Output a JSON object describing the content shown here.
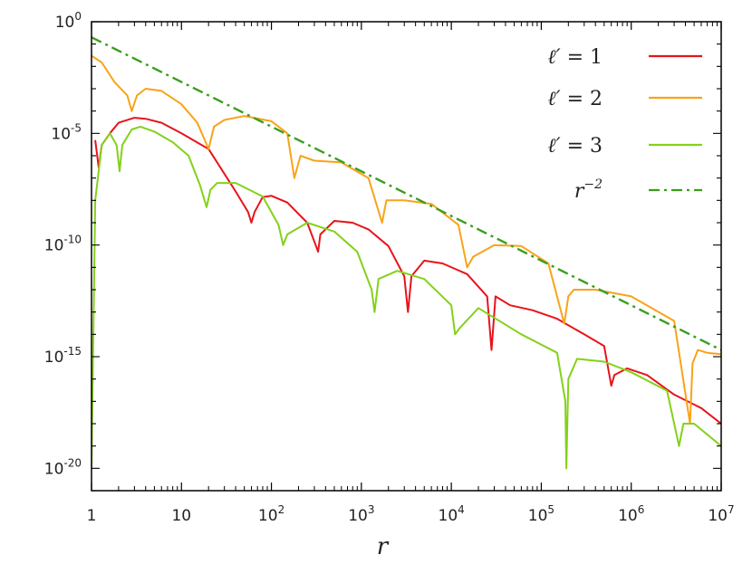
{
  "chart_data": {
    "type": "line",
    "title": "",
    "xlabel": "r",
    "ylabel": "",
    "x_scale": "log",
    "y_scale": "log",
    "xlim": [
      1,
      10000000
    ],
    "ylim": [
      1e-21,
      1
    ],
    "grid": false,
    "legend_position": "top-right",
    "x_ticks": [
      {
        "value": 1,
        "base": "1",
        "exp": ""
      },
      {
        "value": 10,
        "base": "10",
        "exp": ""
      },
      {
        "value": 100,
        "base": "10",
        "exp": "2"
      },
      {
        "value": 1000,
        "base": "10",
        "exp": "3"
      },
      {
        "value": 10000,
        "base": "10",
        "exp": "4"
      },
      {
        "value": 100000,
        "base": "10",
        "exp": "5"
      },
      {
        "value": 1000000,
        "base": "10",
        "exp": "6"
      },
      {
        "value": 10000000,
        "base": "10",
        "exp": "7"
      }
    ],
    "y_ticks": [
      {
        "value": 1,
        "base": "10",
        "exp": "0"
      },
      {
        "value": 1e-05,
        "base": "10",
        "exp": "-5"
      },
      {
        "value": 1e-10,
        "base": "10",
        "exp": "-10"
      },
      {
        "value": 1e-15,
        "base": "10",
        "exp": "-15"
      },
      {
        "value": 1e-20,
        "base": "10",
        "exp": "-20"
      }
    ],
    "series": [
      {
        "name": "ℓ′ = 1",
        "name_var": "ℓ′",
        "name_rest": " = 1",
        "color": "#e8131b",
        "style": "solid",
        "x": [
          1.1,
          1.2,
          1.3,
          1.6,
          2,
          3,
          4,
          6,
          10,
          20,
          40,
          55,
          60,
          65,
          80,
          100,
          150,
          250,
          310,
          330,
          350,
          500,
          800,
          1200,
          2000,
          3000,
          3300,
          3600,
          5000,
          8000,
          15000,
          25000,
          28000,
          31000,
          45000,
          80000,
          150000,
          300000,
          500000,
          600000,
          650000,
          900000,
          1500000,
          3000000,
          6000000,
          10000000
        ],
        "y": [
          5e-06,
          3e-07,
          3e-06,
          1e-05,
          3e-05,
          5e-05,
          4.5e-05,
          3e-05,
          1e-05,
          2e-06,
          2.5e-08,
          3e-09,
          1e-09,
          3e-09,
          1.4e-08,
          1.6e-08,
          8e-09,
          1e-09,
          1e-10,
          5e-11,
          3e-10,
          1.2e-09,
          1e-09,
          5e-10,
          9e-11,
          4e-12,
          1e-13,
          4e-12,
          2e-11,
          1.5e-11,
          5e-12,
          5e-13,
          2e-15,
          5e-13,
          2e-13,
          1.2e-13,
          5e-14,
          1e-14,
          3e-15,
          5e-17,
          1.5e-16,
          3e-16,
          1.5e-16,
          2e-17,
          5e-18,
          1e-18
        ]
      },
      {
        "name": "ℓ′ = 2",
        "name_var": "ℓ′",
        "name_rest": " = 2",
        "color": "#f9a318",
        "style": "solid",
        "x": [
          1,
          1.3,
          1.8,
          2.5,
          2.8,
          3.2,
          4,
          6,
          10,
          15,
          20,
          23,
          30,
          50,
          100,
          150,
          180,
          210,
          300,
          600,
          1200,
          1700,
          1900,
          3000,
          6000,
          12000,
          15000,
          17500,
          30000,
          60000,
          120000,
          180000,
          200000,
          230000,
          400000,
          1000000,
          3000000,
          4500000,
          4800000,
          5500000,
          7000000,
          10000000
        ],
        "y": [
          0.03,
          0.015,
          0.002,
          0.0005,
          0.0001,
          0.0005,
          0.001,
          0.0008,
          0.0002,
          3e-05,
          2e-06,
          2e-05,
          4e-05,
          6e-05,
          3.5e-05,
          1e-05,
          1e-07,
          1e-06,
          6e-07,
          5e-07,
          1e-07,
          1e-09,
          1e-08,
          1e-08,
          7e-09,
          8e-10,
          1e-11,
          3e-11,
          1e-10,
          9e-11,
          1.5e-11,
          3e-14,
          5e-13,
          1e-12,
          1e-12,
          5e-13,
          4e-14,
          1e-18,
          5e-16,
          2e-15,
          1.5e-15,
          1.3e-15
        ]
      },
      {
        "name": "ℓ′ = 3",
        "name_var": "ℓ′",
        "name_rest": " = 3",
        "color": "#84d11a",
        "style": "solid",
        "x": [
          1,
          1.1,
          1.3,
          1.6,
          1.9,
          2.05,
          2.2,
          2.8,
          3.5,
          5,
          8,
          12,
          16,
          19,
          21,
          25,
          40,
          80,
          120,
          135,
          150,
          250,
          500,
          900,
          1300,
          1400,
          1550,
          2500,
          5000,
          10000,
          11000,
          12500,
          20000,
          60000,
          150000,
          185000,
          190000,
          200000,
          250000,
          500000,
          1000000,
          2500000,
          3400000,
          3800000,
          5000000,
          10000000
        ],
        "y": [
          1e-20,
          1e-08,
          3e-06,
          1e-05,
          3e-06,
          2e-07,
          3e-06,
          1.5e-05,
          2e-05,
          1.2e-05,
          4e-06,
          1e-06,
          5e-08,
          5e-09,
          3e-08,
          6e-08,
          6e-08,
          1.5e-08,
          8e-10,
          1e-10,
          3e-10,
          1e-09,
          4e-10,
          5e-11,
          1e-12,
          1e-13,
          3e-12,
          7e-12,
          3e-12,
          2e-13,
          1e-14,
          2e-14,
          1.5e-13,
          1e-14,
          1.5e-15,
          1e-17,
          1e-20,
          1e-16,
          8e-16,
          6e-16,
          2e-16,
          3e-17,
          1e-19,
          1e-18,
          1e-18,
          1e-19
        ]
      },
      {
        "name": "r⁻²",
        "name_var": "r",
        "name_sup": "−2",
        "color": "#3a9e1e",
        "style": "dash-dot",
        "x": [
          1,
          10000000
        ],
        "y": [
          0.2,
          2e-15
        ]
      }
    ]
  }
}
